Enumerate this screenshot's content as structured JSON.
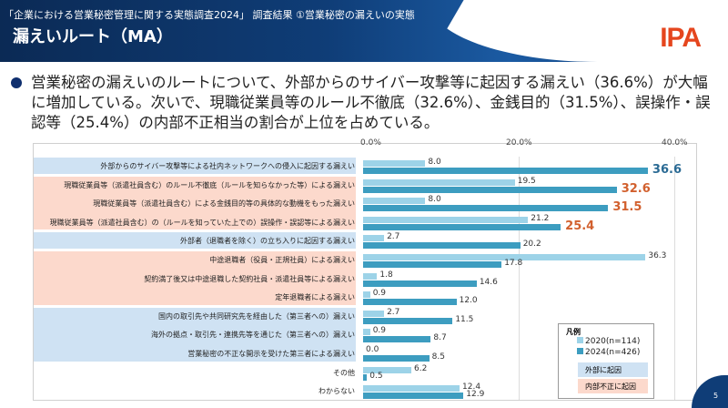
{
  "header": {
    "supertitle": "「企業における営業秘密管理に関する実態調査2024」 調査結果 ①営業秘密の漏えいの実態",
    "title": "漏えいルート（MA）",
    "logo": "IPA"
  },
  "bullet": "営業秘密の漏えいのルートについて、外部からのサイバー攻撃等に起因する漏えい（36.6%）が大幅に増加している。次いで、現職従業員等のルール不徹底（32.6%）、金銭目的（31.5%）、誤操作・誤認等（25.4%）の内部不正相当の割合が上位を占めている。",
  "colors": {
    "s2020": "#9dd3e8",
    "s2024": "#3d9dc0",
    "external": "#cfe2f3",
    "internal": "#fcd9cc",
    "highlight_external": "#2a6a94",
    "highlight_internal": "#d2602e"
  },
  "chart_data": {
    "type": "bar",
    "orientation": "horizontal",
    "xlim": [
      0,
      40
    ],
    "ticks": [
      "0.0%",
      "20.0%",
      "40.0%"
    ],
    "grid": true,
    "categories": [
      "外部からのサイバー攻撃等による社内ネットワークへの侵入に起因する漏えい",
      "現職従業員等（派遣社員含む）のルール不徹底（ルールを知らなかった等）による漏えい",
      "現職従業員等（派遣社員含む）による金銭目的等の具体的な動機をもった漏えい",
      "現職従業員等（派遣社員含む）の（ルールを知っていた上での）誤操作・誤認等による漏えい",
      "外部者（退職者を除く）の立ち入りに起因する漏えい",
      "中途退職者（役員・正規社員）による漏えい",
      "契約満了後又は中途退職した契約社員・派遣社員等による漏えい",
      "定年退職者による漏えい",
      "国内の取引先や共同研究先を経由した（第三者への）漏えい",
      "海外の拠点・取引先・連携先等を通じた（第三者への）漏えい",
      "営業秘密の不正な開示を受けた第三者による漏えい",
      "その他",
      "わからない"
    ],
    "groups": [
      "external",
      "internal",
      "internal",
      "internal",
      "external",
      "internal",
      "internal",
      "internal",
      "external",
      "external",
      "external",
      "none",
      "none"
    ],
    "series": [
      {
        "name": "2020(n=114)",
        "values": [
          8.0,
          19.5,
          8.0,
          21.2,
          2.7,
          36.3,
          1.8,
          0.9,
          2.7,
          0.9,
          0.0,
          6.2,
          12.4
        ]
      },
      {
        "name": "2024(n=426)",
        "values": [
          36.6,
          32.6,
          31.5,
          25.4,
          20.2,
          17.8,
          14.6,
          12.0,
          11.5,
          8.7,
          8.5,
          0.5,
          12.9
        ]
      }
    ],
    "highlighted_2024": [
      0,
      1,
      2,
      3
    ],
    "legend": {
      "title": "凡例",
      "placement": "bottom-right",
      "group_labels": {
        "external": "外部に起因",
        "internal": "内部不正に起因"
      }
    }
  },
  "page": "5"
}
